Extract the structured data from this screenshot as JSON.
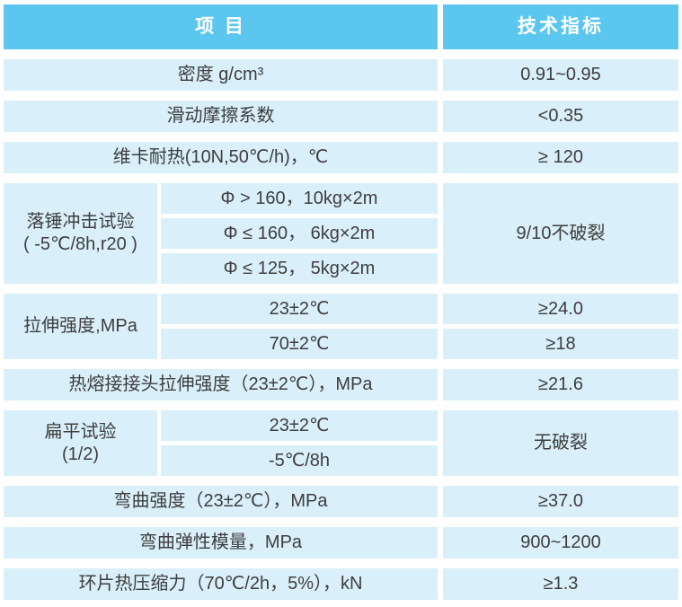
{
  "table": {
    "header": {
      "col1": "项 目",
      "col2": "技术指标"
    },
    "rows": [
      {
        "type": "simple",
        "item": "密度 g/cm³",
        "value": "0.91~0.95"
      },
      {
        "type": "simple",
        "item": "滑动摩擦系数",
        "value": "<0.35"
      },
      {
        "type": "simple",
        "item": "维卡耐热(10N,50℃/h)，℃",
        "value": "≥ 120"
      },
      {
        "type": "group",
        "label_lines": [
          "落锤冲击试验",
          "( -5℃/8h,r20 )"
        ],
        "conditions": [
          "Φ > 160，10kg×2m",
          "Φ ≤ 160， 6kg×2m",
          "Φ ≤ 125， 5kg×2m"
        ],
        "value": "9/10不破裂"
      },
      {
        "type": "group",
        "label_lines": [
          "拉伸强度,MPa"
        ],
        "conditions": [
          "23±2℃",
          "70±2℃"
        ],
        "values": [
          "≥24.0",
          "≥18"
        ]
      },
      {
        "type": "simple",
        "item": "热熔接接头拉伸强度（23±2℃），MPa",
        "value": "≥21.6"
      },
      {
        "type": "group",
        "label_lines": [
          "扁平试验",
          "(1/2)"
        ],
        "conditions": [
          "23±2℃",
          "-5℃/8h"
        ],
        "value": "无破裂"
      },
      {
        "type": "simple",
        "item": "弯曲强度（23±2℃），MPa",
        "value": "≥37.0"
      },
      {
        "type": "simple",
        "item": "弯曲弹性模量，MPa",
        "value": "900~1200"
      },
      {
        "type": "simple",
        "item": "环片热压缩力（70℃/2h，5%），kN",
        "value": "≥1.3"
      }
    ],
    "colors": {
      "header_bg": "#5bc7ef",
      "header_text": "#ffffff",
      "cell_bg": "#d9eff9",
      "text": "#3e3e3e",
      "page_bg": "#ffffff"
    }
  }
}
